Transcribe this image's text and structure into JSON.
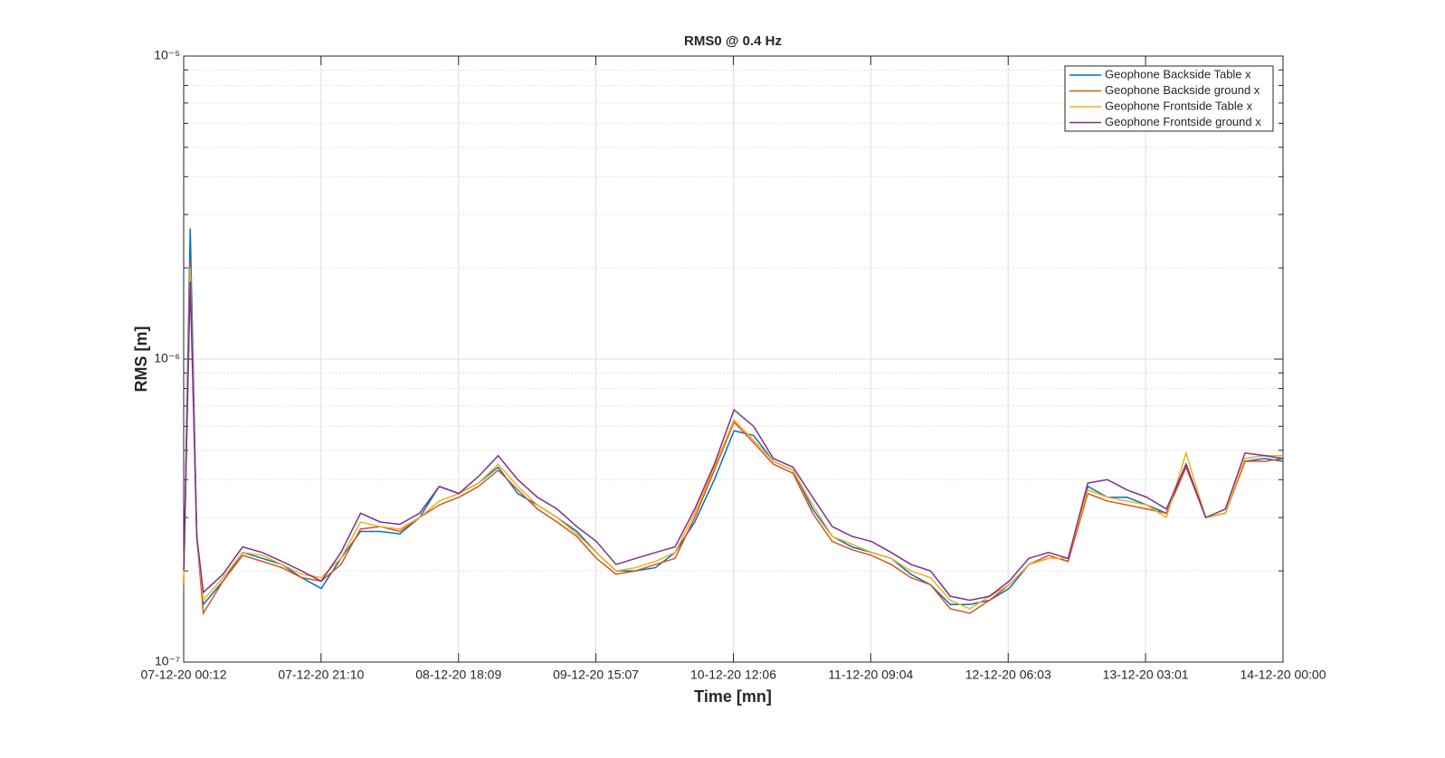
{
  "chart_data": {
    "type": "line",
    "title": "RMS0 @ 0.4 Hz",
    "xlabel": "Time [mn]",
    "ylabel": "RMS [m]",
    "log_y": true,
    "grid": true,
    "legend": "northeast",
    "x": [
      "2020-12-07T00:12",
      "2020-12-07T01:12",
      "2020-12-07T02:12",
      "2020-12-07T03:12",
      "2020-12-07T06:12",
      "2020-12-07T09:12",
      "2020-12-07T12:12",
      "2020-12-07T15:12",
      "2020-12-07T18:12",
      "2020-12-07T21:12",
      "2020-12-08T00:12",
      "2020-12-08T03:12",
      "2020-12-08T06:12",
      "2020-12-08T09:12",
      "2020-12-08T12:12",
      "2020-12-08T15:12",
      "2020-12-08T18:12",
      "2020-12-08T21:12",
      "2020-12-09T00:12",
      "2020-12-09T03:12",
      "2020-12-09T06:12",
      "2020-12-09T09:12",
      "2020-12-09T12:12",
      "2020-12-09T15:12",
      "2020-12-09T18:12",
      "2020-12-09T21:12",
      "2020-12-10T00:12",
      "2020-12-10T03:12",
      "2020-12-10T06:12",
      "2020-12-10T09:12",
      "2020-12-10T12:12",
      "2020-12-10T15:12",
      "2020-12-10T18:12",
      "2020-12-10T21:12",
      "2020-12-11T00:12",
      "2020-12-11T03:12",
      "2020-12-11T06:12",
      "2020-12-11T09:12",
      "2020-12-11T12:12",
      "2020-12-11T15:12",
      "2020-12-11T18:12",
      "2020-12-11T21:12",
      "2020-12-12T00:12",
      "2020-12-12T03:12",
      "2020-12-12T06:12",
      "2020-12-12T09:12",
      "2020-12-12T12:12",
      "2020-12-12T15:12",
      "2020-12-12T18:12",
      "2020-12-12T21:12",
      "2020-12-13T00:12",
      "2020-12-13T03:12",
      "2020-12-13T06:12",
      "2020-12-13T09:12",
      "2020-12-13T12:12",
      "2020-12-13T15:12",
      "2020-12-13T18:12",
      "2020-12-13T21:12",
      "2020-12-14T00:00"
    ],
    "series": [
      {
        "name": "Geophone Backside Table x",
        "color": "#0072bd",
        "values": [
          1.8e-07,
          2.7e-06,
          2.6e-07,
          1.55e-07,
          1.85e-07,
          2.3e-07,
          2.2e-07,
          2.1e-07,
          1.9e-07,
          1.75e-07,
          2.2e-07,
          2.7e-07,
          2.7e-07,
          2.65e-07,
          3e-07,
          3.8e-07,
          3.6e-07,
          3.9e-07,
          4.4e-07,
          3.6e-07,
          3.3e-07,
          3e-07,
          2.7e-07,
          2.3e-07,
          2e-07,
          2e-07,
          2.05e-07,
          2.3e-07,
          2.9e-07,
          4e-07,
          5.8e-07,
          5.6e-07,
          4.6e-07,
          4.3e-07,
          3.2e-07,
          2.6e-07,
          2.4e-07,
          2.3e-07,
          2.2e-07,
          1.95e-07,
          1.8e-07,
          1.55e-07,
          1.55e-07,
          1.6e-07,
          1.75e-07,
          2.1e-07,
          2.2e-07,
          2.2e-07,
          3.8e-07,
          3.5e-07,
          3.5e-07,
          3.3e-07,
          3.1e-07,
          4.5e-07,
          3e-07,
          3.1e-07,
          4.6e-07,
          4.7e-07,
          4.6e-07
        ]
      },
      {
        "name": "Geophone Backside ground x",
        "color": "#d95319",
        "values": [
          1.8e-07,
          2.1e-06,
          2.6e-07,
          1.45e-07,
          1.85e-07,
          2.25e-07,
          2.15e-07,
          2.05e-07,
          1.9e-07,
          1.85e-07,
          2.1e-07,
          2.75e-07,
          2.8e-07,
          2.7e-07,
          3e-07,
          3.3e-07,
          3.5e-07,
          3.8e-07,
          4.3e-07,
          3.7e-07,
          3.2e-07,
          2.9e-07,
          2.6e-07,
          2.2e-07,
          1.95e-07,
          2e-07,
          2.1e-07,
          2.2e-07,
          3e-07,
          4.3e-07,
          6.2e-07,
          5.3e-07,
          4.5e-07,
          4.2e-07,
          3.1e-07,
          2.5e-07,
          2.35e-07,
          2.25e-07,
          2.1e-07,
          1.9e-07,
          1.8e-07,
          1.5e-07,
          1.45e-07,
          1.6e-07,
          1.8e-07,
          2.1e-07,
          2.25e-07,
          2.15e-07,
          3.6e-07,
          3.4e-07,
          3.3e-07,
          3.2e-07,
          3.1e-07,
          4.4e-07,
          3e-07,
          3.1e-07,
          4.6e-07,
          4.6e-07,
          4.7e-07
        ]
      },
      {
        "name": "Geophone Frontside Table x",
        "color": "#edb120",
        "values": [
          1.8e-07,
          2e-06,
          2.6e-07,
          1.6e-07,
          1.9e-07,
          2.3e-07,
          2.25e-07,
          2.1e-07,
          1.95e-07,
          1.9e-07,
          2.2e-07,
          2.9e-07,
          2.8e-07,
          2.75e-07,
          3e-07,
          3.4e-07,
          3.6e-07,
          3.9e-07,
          4.5e-07,
          3.8e-07,
          3.3e-07,
          3e-07,
          2.65e-07,
          2.3e-07,
          2e-07,
          2.05e-07,
          2.15e-07,
          2.3e-07,
          3.1e-07,
          4.4e-07,
          6.3e-07,
          5.4e-07,
          4.6e-07,
          4.3e-07,
          3.3e-07,
          2.6e-07,
          2.45e-07,
          2.3e-07,
          2.2e-07,
          2e-07,
          1.9e-07,
          1.6e-07,
          1.5e-07,
          1.65e-07,
          1.8e-07,
          2.1e-07,
          2.2e-07,
          2.2e-07,
          3.7e-07,
          3.5e-07,
          3.4e-07,
          3.3e-07,
          3e-07,
          4.9e-07,
          3e-07,
          3.1e-07,
          4.7e-07,
          4.8e-07,
          4.8e-07
        ]
      },
      {
        "name": "Geophone Frontside ground x",
        "color": "#7e2f8e",
        "values": [
          2e-07,
          1.8e-06,
          2.6e-07,
          1.7e-07,
          1.95e-07,
          2.4e-07,
          2.3e-07,
          2.15e-07,
          2e-07,
          1.85e-07,
          2.3e-07,
          3.1e-07,
          2.9e-07,
          2.85e-07,
          3.1e-07,
          3.8e-07,
          3.6e-07,
          4.1e-07,
          4.8e-07,
          4e-07,
          3.5e-07,
          3.2e-07,
          2.8e-07,
          2.5e-07,
          2.1e-07,
          2.2e-07,
          2.3e-07,
          2.4e-07,
          3.2e-07,
          4.5e-07,
          6.8e-07,
          6e-07,
          4.7e-07,
          4.4e-07,
          3.5e-07,
          2.8e-07,
          2.6e-07,
          2.5e-07,
          2.3e-07,
          2.1e-07,
          2e-07,
          1.65e-07,
          1.6e-07,
          1.65e-07,
          1.85e-07,
          2.2e-07,
          2.3e-07,
          2.2e-07,
          3.9e-07,
          4e-07,
          3.7e-07,
          3.5e-07,
          3.2e-07,
          4.5e-07,
          3e-07,
          3.2e-07,
          4.9e-07,
          4.8e-07,
          4.7e-07
        ]
      }
    ],
    "xlim": [
      "2020-12-07T00:12",
      "2020-12-14T00:00"
    ],
    "xticks": [
      {
        "value": "2020-12-07T00:12",
        "label": "07-12-20 00:12"
      },
      {
        "value": "2020-12-07T21:10",
        "label": "07-12-20 21:10"
      },
      {
        "value": "2020-12-08T18:09",
        "label": "08-12-20 18:09"
      },
      {
        "value": "2020-12-09T15:07",
        "label": "09-12-20 15:07"
      },
      {
        "value": "2020-12-10T12:06",
        "label": "10-12-20 12:06"
      },
      {
        "value": "2020-12-11T09:04",
        "label": "11-12-20 09:04"
      },
      {
        "value": "2020-12-12T06:03",
        "label": "12-12-20 06:03"
      },
      {
        "value": "2020-12-13T03:01",
        "label": "13-12-20 03:01"
      },
      {
        "value": "2020-12-14T00:00",
        "label": "14-12-20 00:00"
      }
    ],
    "ylim": [
      1e-07,
      1e-05
    ],
    "yticks": [
      {
        "value": 1e-07,
        "label": "10⁻⁷"
      },
      {
        "value": 1e-06,
        "label": "10⁻⁶"
      },
      {
        "value": 1e-05,
        "label": "10⁻⁵"
      }
    ],
    "yminorticks": [
      2e-07,
      3e-07,
      4e-07,
      5e-07,
      6e-07,
      7e-07,
      8e-07,
      9e-07,
      2e-06,
      3e-06,
      4e-06,
      5e-06,
      6e-06,
      7e-06,
      8e-06,
      9e-06
    ]
  }
}
